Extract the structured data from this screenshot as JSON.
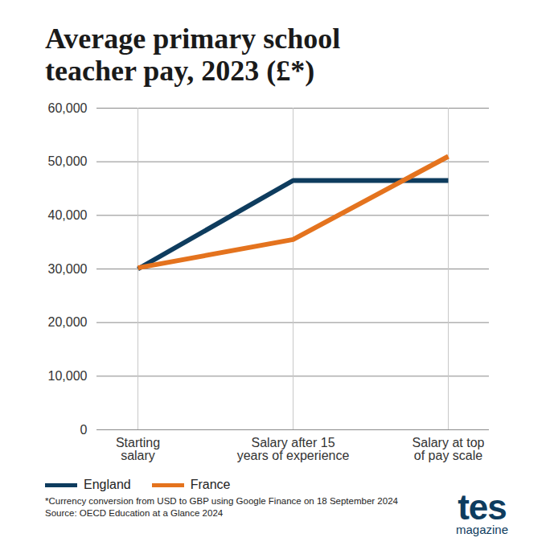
{
  "chart_data": {
    "type": "line",
    "title": "Average primary school teacher pay, 2023 (£*)",
    "categories": [
      "Starting\nsalary",
      "Salary after 15\nyears of experience",
      "Salary at top\nof pay scale"
    ],
    "series": [
      {
        "name": "England",
        "color": "#0e3c5e",
        "values": [
          30000,
          46500,
          46500
        ]
      },
      {
        "name": "France",
        "color": "#e4731e",
        "values": [
          30200,
          35500,
          51000
        ]
      }
    ],
    "ylim": [
      0,
      60000
    ],
    "yticks": [
      0,
      {
        "value": 10000,
        "label": "10,000"
      },
      {
        "value": 20000,
        "label": "20,000"
      },
      {
        "value": 30000,
        "label": "30,000"
      },
      {
        "value": 40000,
        "label": "40,000"
      },
      {
        "value": 50000,
        "label": "50,000"
      },
      {
        "value": 60000,
        "label": "60,000"
      }
    ],
    "grid": true,
    "legend": "bottom-left",
    "footnotes": [
      "*Currency conversion from USD to GBP using Google Finance on 18 September 2024",
      "Source: OECD Education at a Glance 2024"
    ],
    "logo": "tes",
    "logo_caption": "magazine"
  }
}
